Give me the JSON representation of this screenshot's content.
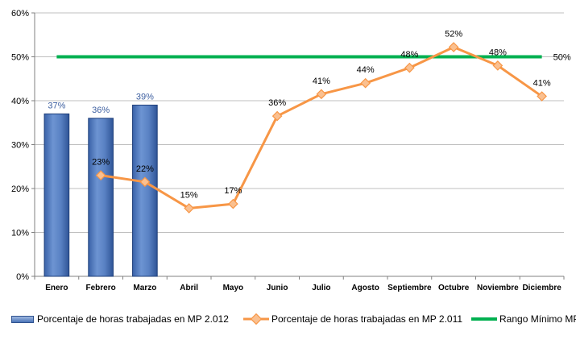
{
  "chart_data": {
    "type": "bar+line",
    "categories": [
      "Enero",
      "Febrero",
      "Marzo",
      "Abril",
      "Mayo",
      "Junio",
      "Julio",
      "Agosto",
      "Septiembre",
      "Octubre",
      "Noviembre",
      "Diciembre"
    ],
    "ylim": [
      0,
      60
    ],
    "yticks": [
      "0%",
      "10%",
      "20%",
      "30%",
      "40%",
      "50%",
      "60%"
    ],
    "grid": true,
    "legend_position": "bottom",
    "series": [
      {
        "name": "Porcentaje de horas trabajadas en MP 2.012",
        "type": "bar",
        "color": "#4a74b8",
        "label_color": "#3d5fa0",
        "values": [
          37,
          36,
          39,
          null,
          null,
          null,
          null,
          null,
          null,
          null,
          null,
          null
        ],
        "labels": [
          "37%",
          "36%",
          "39%"
        ]
      },
      {
        "name": "Porcentaje de horas trabajadas en MP 2.011",
        "type": "line",
        "color": "#f79646",
        "marker_color": "#fac090",
        "values": [
          null,
          23,
          21.5,
          15.5,
          16.5,
          36.5,
          41.5,
          44,
          47.5,
          52.2,
          48,
          41
        ],
        "labels": [
          "",
          "23%",
          "22%",
          "15%",
          "17%",
          "36%",
          "41%",
          "44%",
          "48%",
          "52%",
          "48%",
          "41%"
        ]
      },
      {
        "name": "Rango Mínimo MP",
        "type": "line",
        "color": "#00b050",
        "values": [
          50,
          50,
          50,
          50,
          50,
          50,
          50,
          50,
          50,
          50,
          50,
          50
        ],
        "end_label": "50%"
      }
    ]
  }
}
